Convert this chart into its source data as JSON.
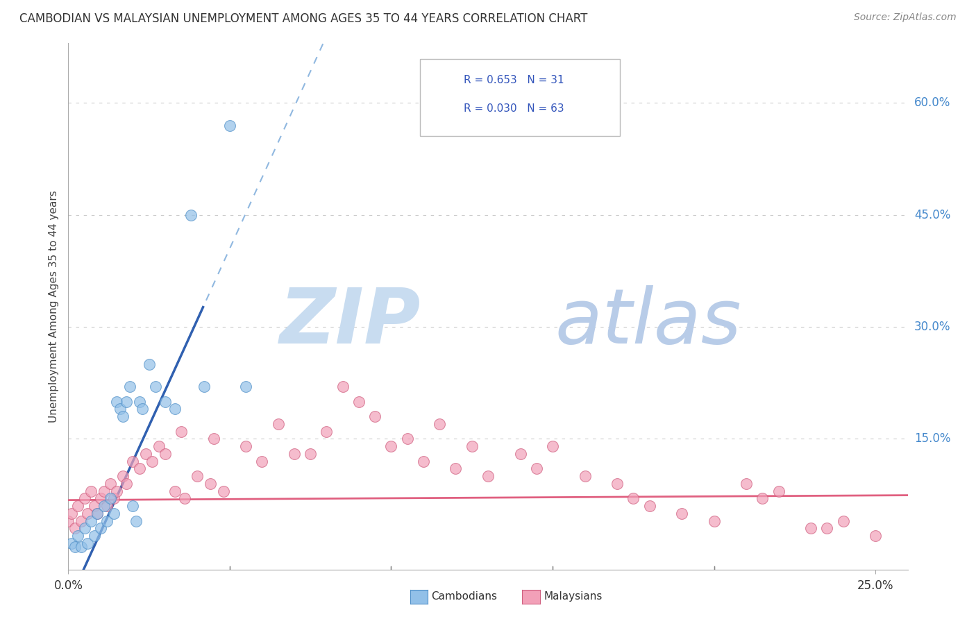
{
  "title": "CAMBODIAN VS MALAYSIAN UNEMPLOYMENT AMONG AGES 35 TO 44 YEARS CORRELATION CHART",
  "source": "Source: ZipAtlas.com",
  "ylabel": "Unemployment Among Ages 35 to 44 years",
  "xlim": [
    0.0,
    0.26
  ],
  "ylim": [
    -0.025,
    0.68
  ],
  "ytick_positions": [
    0.15,
    0.3,
    0.45,
    0.6
  ],
  "ytick_labels": [
    "15.0%",
    "30.0%",
    "45.0%",
    "60.0%"
  ],
  "xtick_positions": [
    0.0,
    0.25
  ],
  "xtick_labels": [
    "0.0%",
    "25.0%"
  ],
  "legend_text_1": "R = 0.653   N = 31",
  "legend_text_2": "R = 0.030   N = 63",
  "cambodian_color": "#92C0E8",
  "cambodian_edge": "#5090C8",
  "malaysian_color": "#F2A0B8",
  "malaysian_edge": "#D06080",
  "trend_cam_color": "#3060B0",
  "trend_mal_color": "#E06080",
  "dash_color": "#90B8E0",
  "watermark_zip_color": "#C8DCF0",
  "watermark_atlas_color": "#B8CCE8",
  "grid_color": "#CCCCCC",
  "cam_trend_slope": 9.5,
  "cam_trend_intercept": -0.07,
  "mal_trend_slope": 0.025,
  "mal_trend_intercept": 0.068,
  "cam_points_x": [
    0.001,
    0.002,
    0.003,
    0.004,
    0.005,
    0.006,
    0.007,
    0.008,
    0.009,
    0.01,
    0.011,
    0.012,
    0.013,
    0.014,
    0.015,
    0.016,
    0.017,
    0.018,
    0.019,
    0.02,
    0.021,
    0.022,
    0.023,
    0.025,
    0.027,
    0.03,
    0.033,
    0.038,
    0.042,
    0.05,
    0.055
  ],
  "cam_points_y": [
    0.01,
    0.005,
    0.02,
    0.005,
    0.03,
    0.01,
    0.04,
    0.02,
    0.05,
    0.03,
    0.06,
    0.04,
    0.07,
    0.05,
    0.2,
    0.19,
    0.18,
    0.2,
    0.22,
    0.06,
    0.04,
    0.2,
    0.19,
    0.25,
    0.22,
    0.2,
    0.19,
    0.45,
    0.22,
    0.57,
    0.22
  ],
  "mal_points_x": [
    0.0,
    0.001,
    0.002,
    0.003,
    0.004,
    0.005,
    0.006,
    0.007,
    0.008,
    0.009,
    0.01,
    0.011,
    0.012,
    0.013,
    0.014,
    0.015,
    0.017,
    0.018,
    0.02,
    0.022,
    0.024,
    0.026,
    0.028,
    0.03,
    0.033,
    0.036,
    0.04,
    0.044,
    0.048,
    0.055,
    0.06,
    0.07,
    0.08,
    0.09,
    0.1,
    0.11,
    0.12,
    0.13,
    0.14,
    0.15,
    0.16,
    0.17,
    0.18,
    0.19,
    0.2,
    0.21,
    0.22,
    0.23,
    0.24,
    0.25,
    0.035,
    0.045,
    0.065,
    0.075,
    0.085,
    0.095,
    0.105,
    0.115,
    0.125,
    0.145,
    0.175,
    0.215,
    0.235
  ],
  "mal_points_y": [
    0.04,
    0.05,
    0.03,
    0.06,
    0.04,
    0.07,
    0.05,
    0.08,
    0.06,
    0.05,
    0.07,
    0.08,
    0.06,
    0.09,
    0.07,
    0.08,
    0.1,
    0.09,
    0.12,
    0.11,
    0.13,
    0.12,
    0.14,
    0.13,
    0.08,
    0.07,
    0.1,
    0.09,
    0.08,
    0.14,
    0.12,
    0.13,
    0.16,
    0.2,
    0.14,
    0.12,
    0.11,
    0.1,
    0.13,
    0.14,
    0.1,
    0.09,
    0.06,
    0.05,
    0.04,
    0.09,
    0.08,
    0.03,
    0.04,
    0.02,
    0.16,
    0.15,
    0.17,
    0.13,
    0.22,
    0.18,
    0.15,
    0.17,
    0.14,
    0.11,
    0.07,
    0.07,
    0.03
  ]
}
